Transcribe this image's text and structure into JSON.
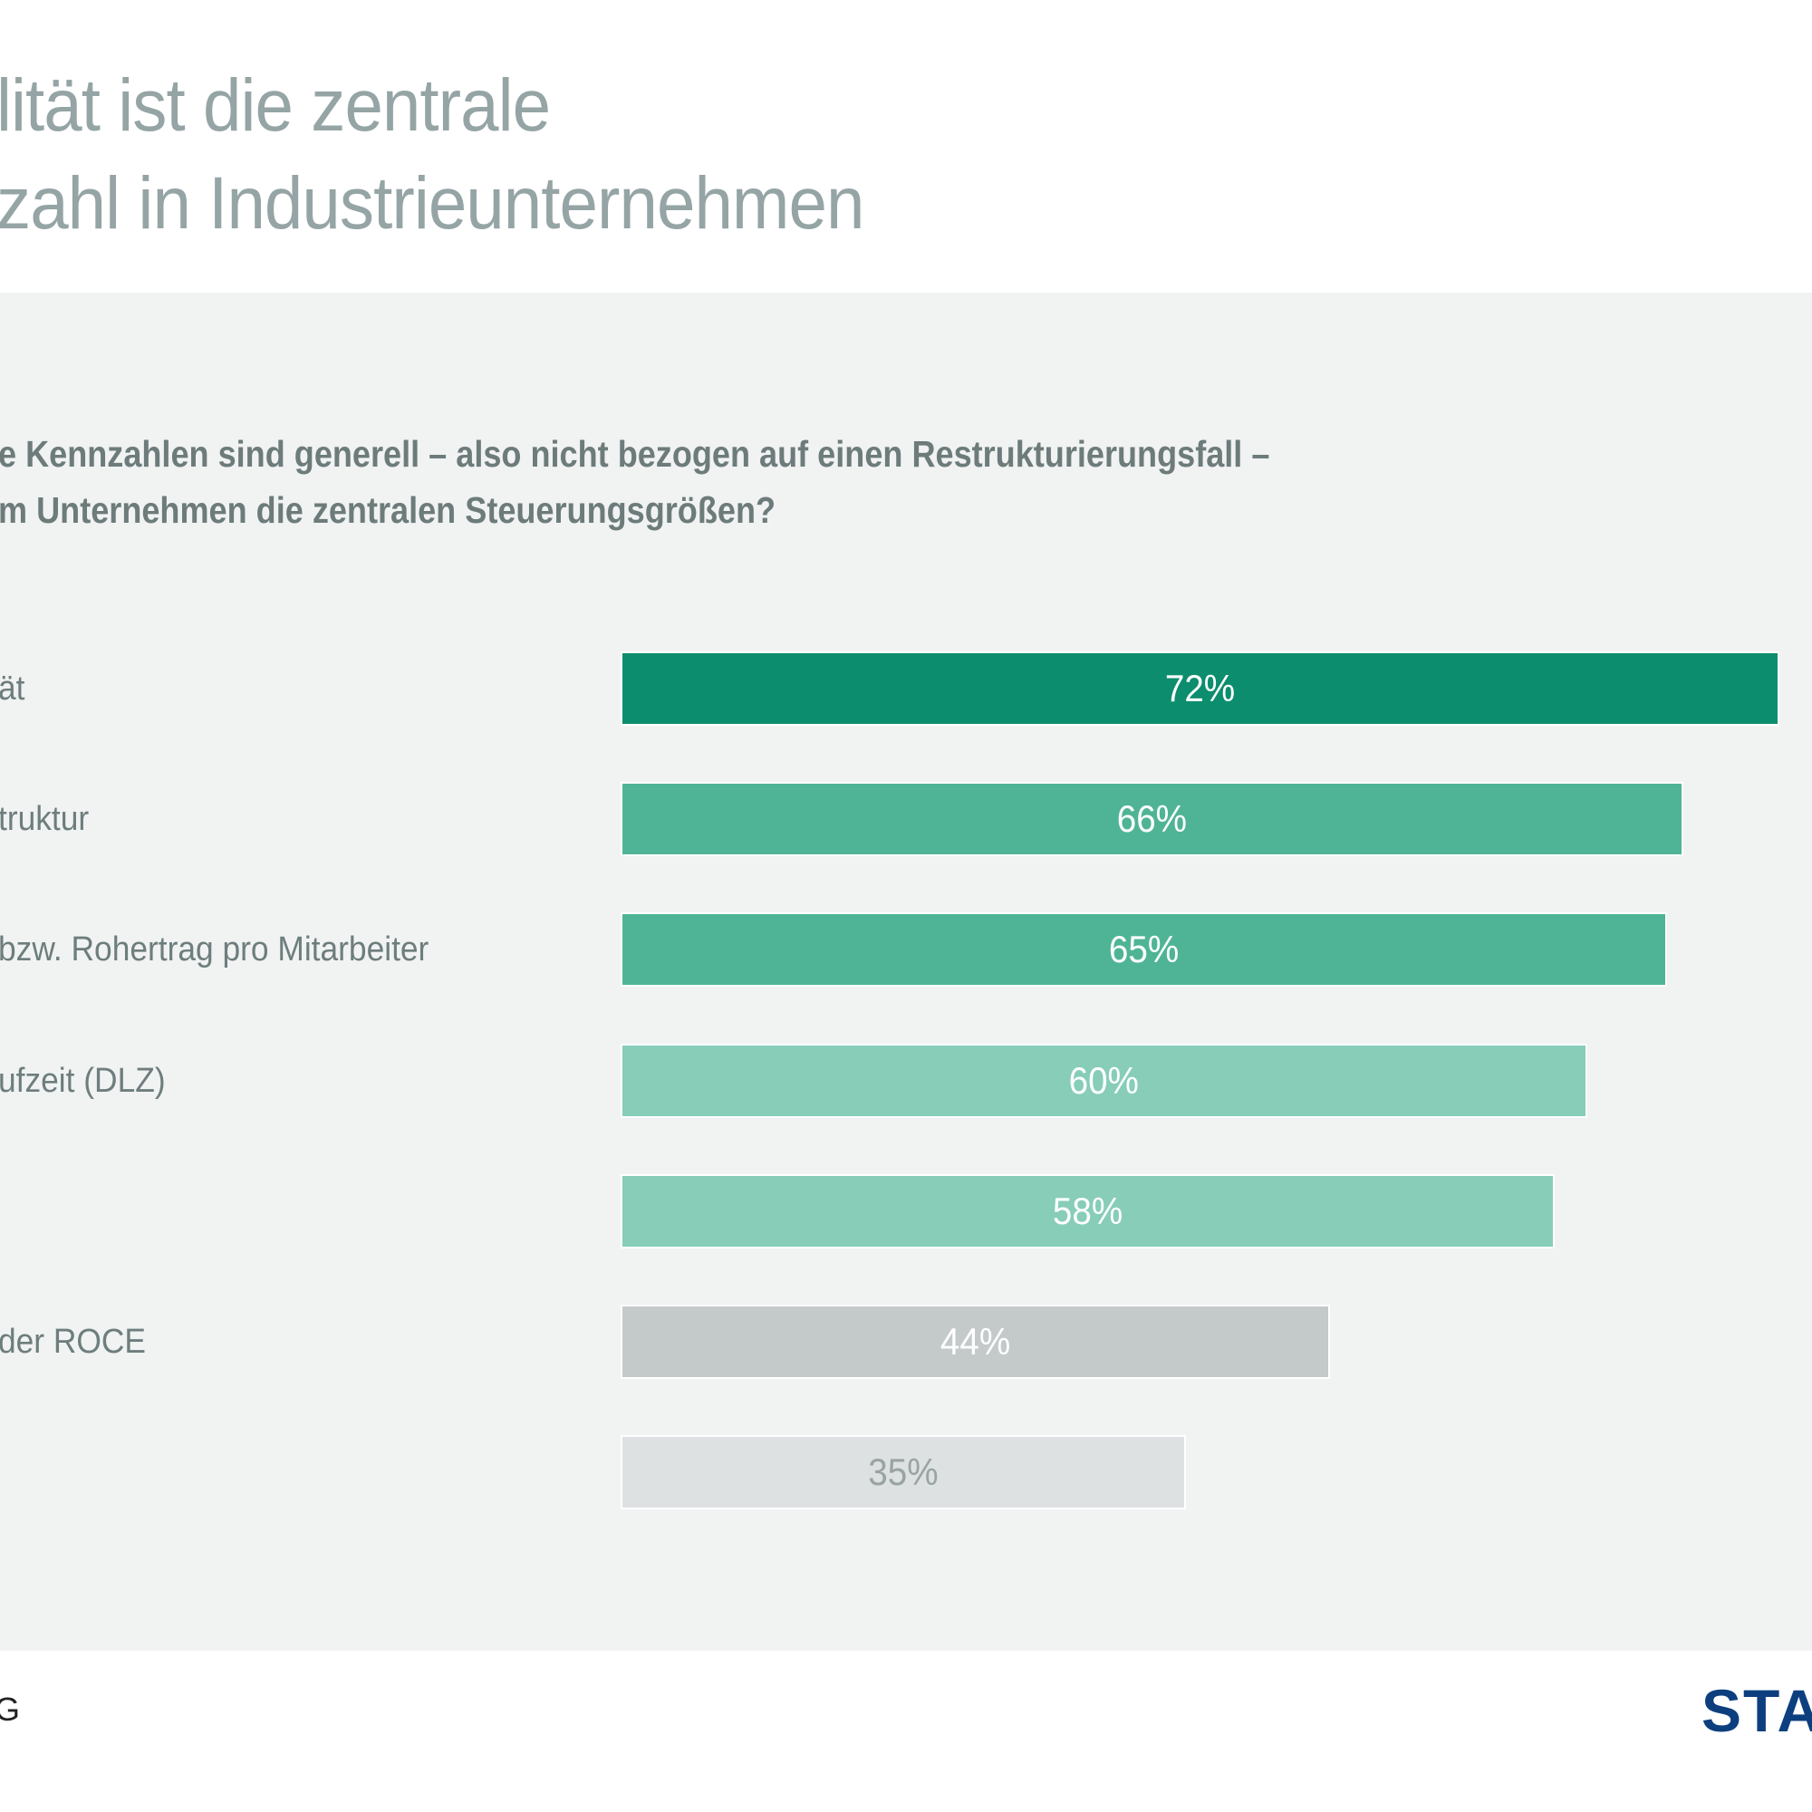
{
  "header": {
    "title_line1": "lität ist die zentrale",
    "title_line2": "zahl in Industrieunternehmen"
  },
  "question": {
    "line1": "e Kennzahlen sind generell – also nicht bezogen auf einen Restrukturierungsfall –",
    "line2": "m Unternehmen die zentralen Steuerungsgrößen?"
  },
  "footer": {
    "left_text": "G",
    "logo_text": "STA"
  },
  "colors": {
    "band_bg": "#f0f3f2",
    "title": "#95a4a5",
    "logo": "#0d3f7f"
  },
  "chart_data": {
    "type": "bar",
    "orientation": "horizontal",
    "title": "",
    "xlabel": "",
    "ylabel": "",
    "xlim": [
      0,
      72
    ],
    "grid": false,
    "categories": [
      "ät",
      "truktur",
      "bzw. Rohertrag pro Mitarbeiter",
      "ufzeit (DLZ)",
      "",
      "der ROCE",
      ""
    ],
    "values": [
      72,
      66,
      65,
      60,
      58,
      44,
      35
    ],
    "value_labels": [
      "72%",
      "66%",
      "65%",
      "60%",
      "58%",
      "44%",
      "35%"
    ],
    "bar_colors": [
      "#0c8d6e",
      "#4fb495",
      "#4fb495",
      "#87cdb8",
      "#87cdb8",
      "#c4c9ca",
      "#dde1e2"
    ],
    "label_colors": [
      "#ffffff",
      "#ffffff",
      "#ffffff",
      "#ffffff",
      "#ffffff",
      "#ffffff",
      "#9aa3a4"
    ]
  }
}
